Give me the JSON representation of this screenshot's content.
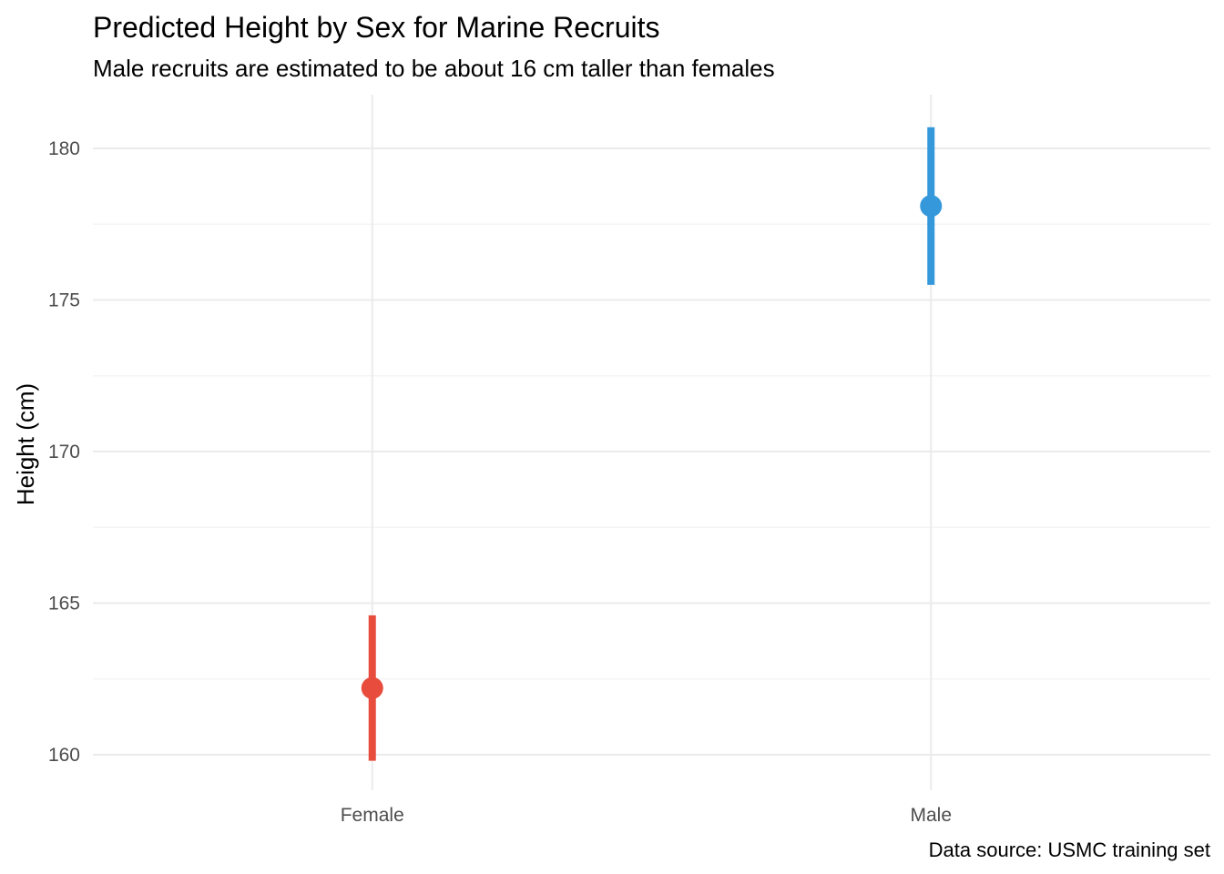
{
  "chart_data": {
    "type": "pointrange",
    "title": "Predicted Height by Sex for Marine Recruits",
    "subtitle": "Male recruits are estimated to be about 16 cm taller than females",
    "xlabel": "",
    "ylabel": "Height (cm)",
    "caption": "Data source: USMC training set",
    "categories": [
      "Female",
      "Male"
    ],
    "y_ticks": [
      160,
      165,
      170,
      175,
      180
    ],
    "ylim": [
      158.8,
      182.2
    ],
    "grid": true,
    "points": [
      {
        "category": "Female",
        "estimate": 162.2,
        "lower": 159.8,
        "upper": 164.6,
        "color": "#e74c3c"
      },
      {
        "category": "Male",
        "estimate": 178.1,
        "lower": 175.5,
        "upper": 180.7,
        "color": "#3498db"
      }
    ]
  }
}
